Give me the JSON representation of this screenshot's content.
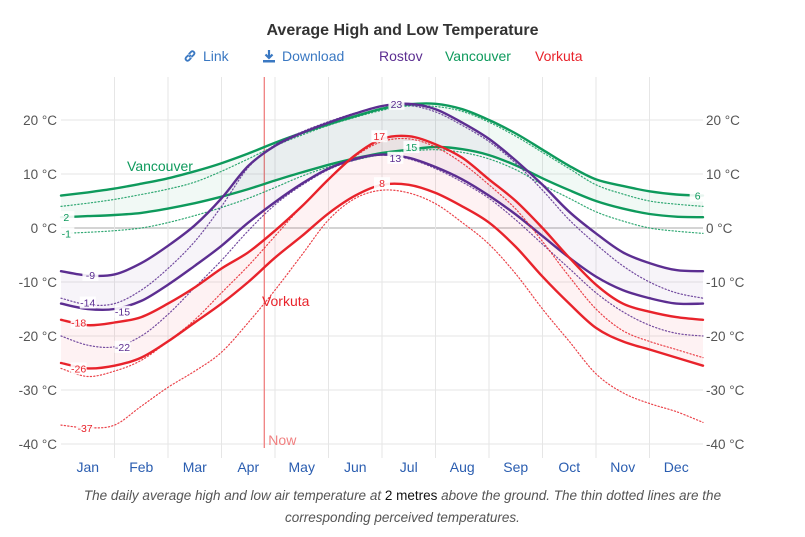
{
  "title": "Average High and Low Temperature",
  "toolbar": {
    "link_label": "Link",
    "link_icon": "link-icon",
    "download_label": "Download",
    "download_icon": "download-icon",
    "legend": [
      "Rostov",
      "Vancouver",
      "Vorkuta"
    ]
  },
  "caption": {
    "before": "The daily average high and low air temperature at ",
    "emphasis": "2 metres",
    "after": " above the ground. The thin dotted lines are the corresponding perceived temperatures."
  },
  "colors": {
    "Rostov": "#5c2e91",
    "Vancouver": "#0e9a5c",
    "Vorkuta": "#e8232b",
    "now_line": "#f08080",
    "grid": "#e6e6e6",
    "zero_line": "#bbbbbb"
  },
  "chart_data": {
    "type": "line",
    "title": "Average High and Low Temperature",
    "xlabel": "",
    "ylabel": "",
    "x_unit": "month (0 = Jan 1, 12 = Dec 31)",
    "xlim": [
      0,
      12
    ],
    "ylim": [
      -43,
      28
    ],
    "yticks": [
      20,
      10,
      0,
      -10,
      -20,
      -30,
      -40
    ],
    "ytick_labels": [
      "20 °C",
      "10 °C",
      "0 °C",
      "-10 °C",
      "-20 °C",
      "-30 °C",
      "-40 °C"
    ],
    "month_labels": [
      "Jan",
      "Feb",
      "Mar",
      "Apr",
      "May",
      "Jun",
      "Jul",
      "Aug",
      "Sep",
      "Oct",
      "Nov",
      "Dec"
    ],
    "grid": true,
    "legend_placement": "top",
    "now_marker": {
      "label": "Now",
      "x": 3.8
    },
    "x": [
      0,
      0.5,
      1,
      1.5,
      2,
      2.5,
      3,
      3.5,
      4,
      4.5,
      5,
      5.5,
      6,
      6.5,
      7,
      7.5,
      8,
      8.5,
      9,
      9.5,
      10,
      10.5,
      11,
      11.5,
      12
    ],
    "series": [
      {
        "name": "Vancouver high",
        "city": "Vancouver",
        "kind": "high",
        "values": [
          6,
          6.6,
          7.3,
          8.2,
          9.2,
          10.5,
          12,
          13.8,
          15.8,
          17.6,
          19.2,
          20.7,
          22.1,
          22.9,
          23,
          22,
          20,
          17.5,
          14.5,
          11.5,
          9,
          7.8,
          6.8,
          6.2,
          6
        ]
      },
      {
        "name": "Vancouver low",
        "city": "Vancouver",
        "kind": "low",
        "values": [
          2,
          2.2,
          2.4,
          2.8,
          3.6,
          4.6,
          5.8,
          7.2,
          8.8,
          10.3,
          11.7,
          12.9,
          13.9,
          14.5,
          15,
          14.6,
          13.5,
          11.6,
          9.2,
          7,
          5,
          3.6,
          2.6,
          2.1,
          2
        ]
      },
      {
        "name": "Vancouver high perceived",
        "city": "Vancouver",
        "kind": "high_feel",
        "values": [
          4,
          4.6,
          5.3,
          6.2,
          7.2,
          8.5,
          10.5,
          12.8,
          15.2,
          17.2,
          19,
          20.5,
          21.8,
          22.6,
          22.5,
          21.6,
          19.6,
          17,
          14,
          11,
          8,
          6.3,
          5,
          4.4,
          4
        ]
      },
      {
        "name": "Vancouver low perceived",
        "city": "Vancouver",
        "kind": "low_feel",
        "values": [
          -1,
          -0.8,
          -0.5,
          0,
          1,
          2.3,
          3.8,
          5.5,
          7.5,
          9.6,
          11.3,
          12.6,
          13.6,
          14.2,
          14.5,
          14,
          12.8,
          10.8,
          8,
          5.5,
          3,
          1.3,
          0,
          -0.6,
          -1
        ]
      },
      {
        "name": "Rostov high",
        "city": "Rostov",
        "kind": "high",
        "values": [
          -8,
          -8.8,
          -8.6,
          -6.5,
          -3.3,
          0.5,
          5.5,
          11.5,
          15.2,
          17.6,
          19.5,
          21.2,
          22.6,
          23,
          22,
          19.5,
          16.5,
          12.5,
          8,
          3,
          -1,
          -4.5,
          -6.5,
          -7.8,
          -8
        ]
      },
      {
        "name": "Rostov low",
        "city": "Rostov",
        "kind": "low",
        "values": [
          -14,
          -15,
          -15,
          -13.5,
          -10.5,
          -7,
          -3.3,
          1,
          4.8,
          8.2,
          11,
          12.8,
          13.6,
          13,
          11.3,
          9,
          6,
          2.5,
          -1.5,
          -5.5,
          -9,
          -11.5,
          -13,
          -14,
          -14
        ]
      },
      {
        "name": "Rostov high perceived",
        "city": "Rostov",
        "kind": "high_feel",
        "values": [
          -13,
          -14.2,
          -14,
          -11.5,
          -7.5,
          -2.5,
          4,
          11.2,
          15.4,
          17.8,
          19.7,
          21.3,
          22.5,
          22.7,
          21.5,
          19,
          16,
          12,
          7,
          1.5,
          -3,
          -7,
          -10,
          -12,
          -13
        ]
      },
      {
        "name": "Rostov low perceived",
        "city": "Rostov",
        "kind": "low_feel",
        "values": [
          -20,
          -21.7,
          -22,
          -20,
          -16,
          -11,
          -6,
          -0.5,
          4.3,
          7.9,
          10.8,
          12.6,
          13.5,
          12.8,
          11,
          8.5,
          5.5,
          1.5,
          -3,
          -7.5,
          -12,
          -15.5,
          -18,
          -19.5,
          -20
        ]
      },
      {
        "name": "Vorkuta high",
        "city": "Vorkuta",
        "kind": "high",
        "values": [
          -17,
          -18,
          -17.5,
          -16.5,
          -14,
          -11,
          -7.5,
          -4.5,
          -0.5,
          4,
          9,
          13.5,
          16.5,
          17,
          15.5,
          13,
          9,
          5,
          0,
          -5.5,
          -10.5,
          -14,
          -15.5,
          -16.5,
          -17
        ]
      },
      {
        "name": "Vorkuta low",
        "city": "Vorkuta",
        "kind": "low",
        "values": [
          -25,
          -26,
          -25.5,
          -24,
          -21,
          -17.5,
          -14,
          -10,
          -5.5,
          -1.5,
          2.7,
          6,
          8,
          8,
          6.5,
          4,
          1,
          -3.5,
          -9,
          -14,
          -18.5,
          -21,
          -22.5,
          -24,
          -25.5
        ]
      },
      {
        "name": "Vorkuta high perceived",
        "city": "Vorkuta",
        "kind": "high_feel",
        "values": [
          -26,
          -27.5,
          -26.5,
          -24.5,
          -21,
          -17,
          -12,
          -7,
          -1.5,
          4,
          9,
          13.3,
          16,
          16.5,
          15,
          12,
          8,
          3.5,
          -2.5,
          -9,
          -15,
          -19,
          -21,
          -22.5,
          -24
        ]
      },
      {
        "name": "Vorkuta low perceived",
        "city": "Vorkuta",
        "kind": "low_feel",
        "values": [
          -36.5,
          -37,
          -36.5,
          -33,
          -29.5,
          -26.5,
          -23,
          -17.5,
          -11.5,
          -5,
          1.5,
          5.5,
          7,
          6.5,
          4.5,
          1,
          -3,
          -8.5,
          -15,
          -21,
          -27,
          -30.5,
          -32.5,
          -34,
          -36
        ]
      }
    ],
    "data_labels": [
      {
        "city": "Vancouver",
        "text": "2",
        "x": 0.1,
        "y": 2
      },
      {
        "city": "Vancouver",
        "text": "-1",
        "x": 0.1,
        "y": -1
      },
      {
        "city": "Vancouver",
        "text": "6",
        "x": 11.9,
        "y": 6
      },
      {
        "city": "Vancouver",
        "text": "15",
        "x": 6.55,
        "y": 15
      },
      {
        "city": "Rostov",
        "text": "-9",
        "x": 0.55,
        "y": -8.7
      },
      {
        "city": "Rostov",
        "text": "-14",
        "x": 0.5,
        "y": -13.8
      },
      {
        "city": "Rostov",
        "text": "-15",
        "x": 1.15,
        "y": -15.5
      },
      {
        "city": "Rostov",
        "text": "-22",
        "x": 1.15,
        "y": -22
      },
      {
        "city": "Rostov",
        "text": "23",
        "x": 6.27,
        "y": 23
      },
      {
        "city": "Rostov",
        "text": "13",
        "x": 6.25,
        "y": 13
      },
      {
        "city": "Vorkuta",
        "text": "-18",
        "x": 0.33,
        "y": -17.5
      },
      {
        "city": "Vorkuta",
        "text": "-26",
        "x": 0.33,
        "y": -26
      },
      {
        "city": "Vorkuta",
        "text": "-37",
        "x": 0.45,
        "y": -37
      },
      {
        "city": "Vorkuta",
        "text": "17",
        "x": 5.95,
        "y": 17
      },
      {
        "city": "Vorkuta",
        "text": "8",
        "x": 6.0,
        "y": 8.3
      }
    ],
    "series_labels": [
      {
        "city": "Vancouver",
        "text": "Vancouver",
        "x": 1.85,
        "y": 11.5
      },
      {
        "city": "Vorkuta",
        "text": "Vorkuta",
        "x": 4.2,
        "y": -13.5
      }
    ]
  }
}
